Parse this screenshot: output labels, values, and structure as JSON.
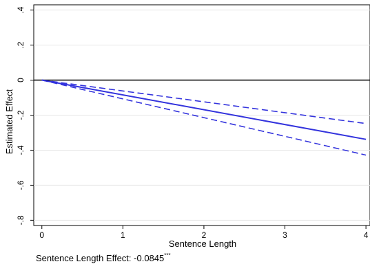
{
  "chart_data": {
    "type": "line",
    "xlabel": "Sentence Length",
    "ylabel": "Estimated Effect",
    "xlim": [
      -0.1,
      4.05
    ],
    "ylim": [
      -0.83,
      0.43
    ],
    "x_ticks": [
      0,
      1,
      2,
      3,
      4
    ],
    "x_tick_labels": [
      "0",
      "1",
      "2",
      "3",
      "4"
    ],
    "y_ticks": [
      0.4,
      0.2,
      0,
      -0.2,
      -0.4,
      -0.6,
      -0.8
    ],
    "y_tick_labels": [
      ".4",
      ".2",
      "0",
      "-.2",
      "-.4",
      "-.6",
      "-.8"
    ],
    "reference_line_y": 0,
    "grid": true,
    "legend": "none",
    "series": [
      {
        "role": "estimate",
        "style": "solid",
        "color": "#3333dd",
        "x": [
          0,
          4
        ],
        "y": [
          0,
          -0.338
        ]
      },
      {
        "role": "upper_ci",
        "style": "dashed",
        "color": "#3333dd",
        "x": [
          0,
          1,
          2,
          3,
          4
        ],
        "y": [
          0,
          -0.062,
          -0.124,
          -0.186,
          -0.248
        ]
      },
      {
        "role": "lower_ci",
        "style": "dashed",
        "color": "#3333dd",
        "x": [
          0,
          1,
          2,
          3,
          4
        ],
        "y": [
          0,
          -0.107,
          -0.214,
          -0.321,
          -0.428
        ]
      }
    ],
    "footnote": "Sentence Length Effect: -0.0845",
    "footnote_sup": "***"
  }
}
